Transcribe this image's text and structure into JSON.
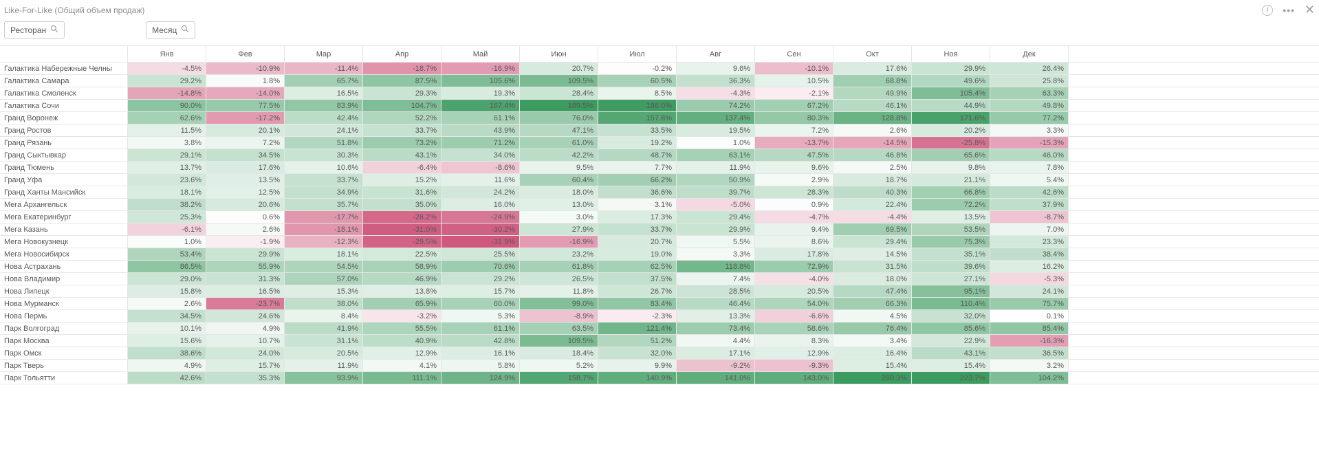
{
  "title": "Like-For-Like (Общий объем продаж)",
  "filters": {
    "restaurant_label": "Ресторан",
    "month_label": "Месяц"
  },
  "months": [
    "Янв",
    "Фев",
    "Мар",
    "Апр",
    "Май",
    "Июн",
    "Июл",
    "Авг",
    "Сен",
    "Окт",
    "Ноя",
    "Дек"
  ],
  "rows": [
    {
      "name": "Галактика Набережные Челны",
      "v": [
        -4.5,
        -10.9,
        -11.4,
        -18.7,
        -16.9,
        20.7,
        -0.2,
        9.6,
        -10.1,
        17.6,
        29.9,
        26.4
      ]
    },
    {
      "name": "Галактика Самара",
      "v": [
        29.2,
        1.8,
        65.7,
        87.5,
        105.6,
        109.5,
        60.5,
        36.3,
        10.5,
        68.8,
        49.6,
        25.8
      ]
    },
    {
      "name": "Галактика Смоленск",
      "v": [
        -14.8,
        -14.0,
        16.5,
        29.3,
        19.3,
        28.4,
        8.5,
        -4.3,
        -2.1,
        49.9,
        105.4,
        63.3
      ]
    },
    {
      "name": "Галактика Сочи",
      "v": [
        90.0,
        77.5,
        83.9,
        104.7,
        167.4,
        189.5,
        186.0,
        74.2,
        67.2,
        46.1,
        44.9,
        49.8
      ]
    },
    {
      "name": "Гранд Воронеж",
      "v": [
        62.6,
        -17.2,
        42.4,
        52.2,
        61.1,
        76.0,
        157.8,
        137.4,
        80.3,
        128.8,
        171.6,
        77.2
      ]
    },
    {
      "name": "Гранд Ростов",
      "v": [
        11.5,
        20.1,
        24.1,
        33.7,
        43.9,
        47.1,
        33.5,
        19.5,
        7.2,
        2.6,
        20.2,
        3.3
      ]
    },
    {
      "name": "Гранд Рязань",
      "v": [
        3.8,
        7.2,
        51.8,
        73.2,
        71.2,
        61.0,
        19.2,
        1.0,
        -13.7,
        -14.5,
        -25.8,
        -15.3
      ]
    },
    {
      "name": "Гранд Сыктывкар",
      "v": [
        29.1,
        34.5,
        30.3,
        43.1,
        34.0,
        42.2,
        48.7,
        63.1,
        47.5,
        46.8,
        65.6,
        46.0
      ]
    },
    {
      "name": "Гранд Тюмень",
      "v": [
        13.7,
        17.6,
        10.6,
        -6.4,
        -8.6,
        9.5,
        7.7,
        11.9,
        9.6,
        2.5,
        9.8,
        7.8
      ]
    },
    {
      "name": "Гранд Уфа",
      "v": [
        23.6,
        13.5,
        33.7,
        15.2,
        11.6,
        60.4,
        66.2,
        50.9,
        2.9,
        18.7,
        21.1,
        5.4
      ]
    },
    {
      "name": "Гранд Ханты Мансийск",
      "v": [
        18.1,
        12.5,
        34.9,
        31.6,
        24.2,
        18.0,
        36.6,
        39.7,
        28.3,
        40.3,
        66.8,
        42.6
      ]
    },
    {
      "name": "Мега Архангельск",
      "v": [
        38.2,
        20.6,
        35.7,
        35.0,
        16.0,
        13.0,
        3.1,
        -5.0,
        0.9,
        22.4,
        72.2,
        37.9
      ]
    },
    {
      "name": "Мега Екатеринбург",
      "v": [
        25.3,
        0.6,
        -17.7,
        -28.2,
        -24.9,
        3.0,
        17.3,
        29.4,
        -4.7,
        -4.4,
        13.5,
        -8.7
      ]
    },
    {
      "name": "Мега Казань",
      "v": [
        -6.1,
        2.6,
        -18.1,
        -31.0,
        -30.2,
        27.9,
        33.7,
        29.9,
        9.4,
        69.5,
        53.5,
        7.0
      ]
    },
    {
      "name": "Мега Новокузнецк",
      "v": [
        1.0,
        -1.9,
        -12.3,
        -29.5,
        -31.9,
        -16.9,
        20.7,
        5.5,
        8.6,
        29.4,
        75.3,
        23.3
      ]
    },
    {
      "name": "Мега Новосибирск",
      "v": [
        53.4,
        29.9,
        18.1,
        22.5,
        25.5,
        23.2,
        19.0,
        3.3,
        17.8,
        14.5,
        35.1,
        38.4
      ]
    },
    {
      "name": "Нова Астрахань",
      "v": [
        86.5,
        55.9,
        54.5,
        58.9,
        70.6,
        61.8,
        62.5,
        118.8,
        72.9,
        31.5,
        39.6,
        16.2
      ]
    },
    {
      "name": "Нова Владимир",
      "v": [
        29.0,
        31.3,
        57.0,
        46.9,
        29.2,
        26.5,
        37.5,
        7.4,
        -4.0,
        18.0,
        27.1,
        -5.3
      ]
    },
    {
      "name": "Нова Липецк",
      "v": [
        15.8,
        16.5,
        15.3,
        13.8,
        15.7,
        11.8,
        26.7,
        28.5,
        20.5,
        47.4,
        95.1,
        24.1
      ]
    },
    {
      "name": "Нова Мурманск",
      "v": [
        2.6,
        -23.7,
        38.0,
        65.9,
        60.0,
        99.0,
        83.4,
        46.4,
        54.0,
        66.3,
        110.4,
        75.7
      ]
    },
    {
      "name": "Нова Пермь",
      "v": [
        34.5,
        24.6,
        8.4,
        -3.2,
        5.3,
        -8.9,
        -2.3,
        13.3,
        -6.6,
        4.5,
        32.0,
        0.1
      ]
    },
    {
      "name": "Парк Волгоград",
      "v": [
        10.1,
        4.9,
        41.9,
        55.5,
        61.1,
        63.5,
        121.4,
        73.4,
        58.6,
        76.4,
        85.6,
        85.4
      ]
    },
    {
      "name": "Парк Москва",
      "v": [
        15.6,
        10.7,
        31.1,
        40.9,
        42.8,
        109.5,
        51.2,
        4.4,
        8.3,
        3.4,
        22.9,
        -16.3
      ]
    },
    {
      "name": "Парк Омск",
      "v": [
        38.6,
        24.0,
        20.5,
        12.9,
        16.1,
        18.4,
        32.0,
        17.1,
        12.9,
        16.4,
        43.1,
        36.5
      ]
    },
    {
      "name": "Парк Тверь",
      "v": [
        4.9,
        15.7,
        11.9,
        4.1,
        5.8,
        5.2,
        9.9,
        -9.2,
        -9.3,
        15.4,
        15.4,
        3.2
      ]
    },
    {
      "name": "Парк Тольятти",
      "v": [
        42.6,
        35.3,
        93.9,
        111.1,
        124.9,
        158.7,
        140.9,
        141.0,
        143.0,
        280.3,
        223.7,
        104.2
      ]
    }
  ],
  "palette": {
    "neg_max": "#cf597e",
    "neg_mid": "#e9a3b5",
    "neg_low": "#f6e2e6",
    "zero": "#ffffff",
    "pos_low": "#e9f3ec",
    "pos_mid": "#b8dcc2",
    "pos_high": "#7bbd92",
    "pos_max": "#3c9b5f"
  }
}
